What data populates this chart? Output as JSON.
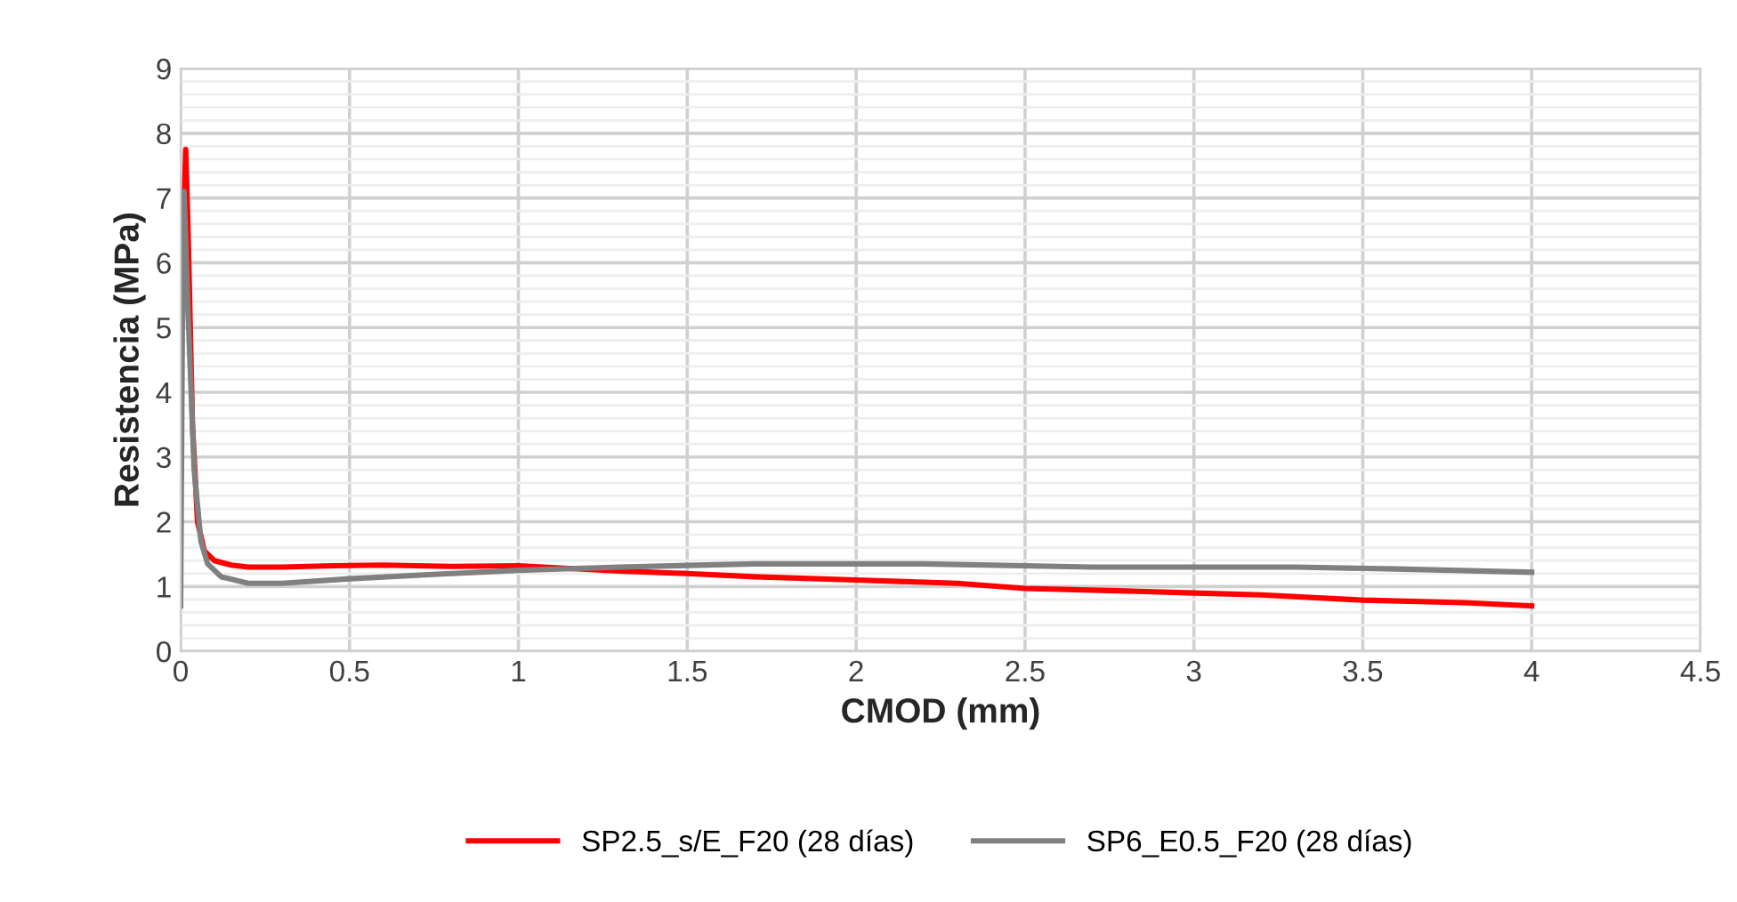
{
  "chart_data": {
    "type": "line",
    "xlabel": "CMOD (mm)",
    "ylabel": "Resistencia (MPa)",
    "xlim": [
      0,
      4.5
    ],
    "ylim": [
      0,
      9
    ],
    "xticks": [
      0,
      0.5,
      1,
      1.5,
      2,
      2.5,
      3,
      3.5,
      4,
      4.5
    ],
    "yticks": [
      0,
      1,
      2,
      3,
      4,
      5,
      6,
      7,
      8,
      9
    ],
    "grid": true,
    "legend": "bottom",
    "marker": "none",
    "line_style": "solid",
    "series": [
      {
        "name": "SP2.5_s/E_F20 (28 días)",
        "color": "#ff0000",
        "x": [
          0.008,
          0.015,
          0.022,
          0.035,
          0.05,
          0.07,
          0.1,
          0.15,
          0.2,
          0.3,
          0.45,
          0.6,
          0.8,
          1.0,
          1.15,
          1.3,
          1.5,
          1.7,
          2.0,
          2.3,
          2.5,
          2.8,
          3.0,
          3.2,
          3.5,
          3.8,
          4.0
        ],
        "values": [
          6.5,
          7.75,
          6.5,
          3.5,
          2.0,
          1.55,
          1.4,
          1.33,
          1.3,
          1.3,
          1.32,
          1.33,
          1.31,
          1.32,
          1.28,
          1.24,
          1.2,
          1.15,
          1.1,
          1.05,
          0.97,
          0.93,
          0.9,
          0.87,
          0.79,
          0.75,
          0.7
        ]
      },
      {
        "name": "SP6_E0.5_F20 (28 días)",
        "color": "#808080",
        "x": [
          0,
          0.005,
          0.01,
          0.02,
          0.04,
          0.06,
          0.08,
          0.12,
          0.2,
          0.3,
          0.5,
          0.8,
          1.0,
          1.3,
          1.7,
          2.2,
          2.7,
          3.0,
          3.3,
          3.6,
          4.0
        ],
        "values": [
          0.7,
          5.0,
          7.1,
          5.5,
          2.8,
          1.7,
          1.35,
          1.15,
          1.05,
          1.05,
          1.12,
          1.2,
          1.25,
          1.3,
          1.35,
          1.35,
          1.3,
          1.3,
          1.3,
          1.27,
          1.22
        ]
      }
    ]
  }
}
